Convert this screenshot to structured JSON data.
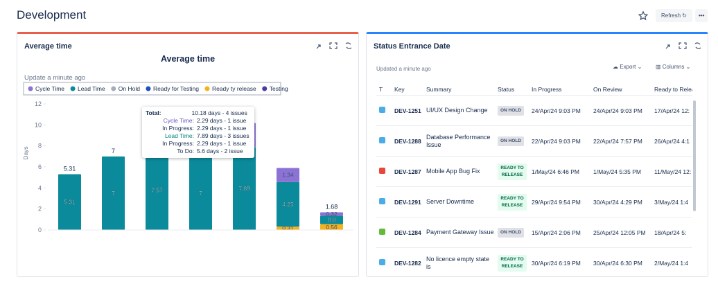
{
  "header": {
    "title": "Development",
    "refresh": "Refresh"
  },
  "left_panel": {
    "title": "Average time",
    "updated": "Update a minute ago"
  },
  "chart_data": {
    "type": "stacked-bar",
    "title": "Average time",
    "y_label": "Days",
    "categories": [
      null,
      null,
      null,
      null,
      null,
      null,
      null
    ],
    "series": [
      {
        "name": "Cycle Time",
        "color": "#8b73d6",
        "values": [
          null,
          null,
          null,
          null,
          2.29,
          1.34,
          0.32
        ]
      },
      {
        "name": "Lead Time",
        "color": "#0b8a9b",
        "values": [
          5.31,
          7,
          7.57,
          7,
          7.89,
          4.25,
          0.8
        ]
      },
      {
        "name": "On Hold",
        "color": "#a5adba",
        "values": [
          null,
          null,
          null,
          null,
          null,
          null,
          null
        ]
      },
      {
        "name": "Ready for Testing",
        "color": "#1d4fbf",
        "values": [
          null,
          null,
          null,
          null,
          null,
          null,
          null
        ]
      },
      {
        "name": "Ready ty release",
        "color": "#f5b21f",
        "values": [
          null,
          null,
          null,
          null,
          null,
          0.31,
          0.56
        ]
      },
      {
        "name": "Testing",
        "color": "#4a3aa4",
        "values": [
          null,
          null,
          null,
          null,
          null,
          null,
          null
        ]
      }
    ],
    "totals": [
      5.31,
      7,
      null,
      null,
      null,
      null,
      1.68
    ],
    "ylim": [
      0,
      12
    ],
    "yticks": [
      0,
      2,
      4,
      6,
      8,
      10,
      12
    ],
    "grid": false,
    "tooltip": [
      {
        "label": "Total:",
        "value": "10.18 days - 4 issues"
      },
      {
        "label": "Cycle Time:",
        "value": "2.29 days - 1 issue"
      },
      {
        "label": "In Progress:",
        "value": "2.29 days - 1 issue"
      },
      {
        "label": "Lead Time:",
        "value": "7.89 days - 3 issues"
      },
      {
        "label": "In Progress:",
        "value": "2.29 days - 1 issue"
      },
      {
        "label": "To Do:",
        "value": "5.6 days - 2 issue"
      }
    ]
  },
  "right_panel": {
    "title": "Status Entrance Date",
    "updated": "Updated a minute ago",
    "export": "Export",
    "columns": "Columns"
  },
  "table": {
    "headers": [
      "T",
      "Key",
      "Summary",
      "Status",
      "In Progress",
      "On Review",
      "Ready to Release"
    ],
    "rows": [
      [
        "DEV-1251",
        "UI/UX Design Change",
        "ON HOLD",
        "24/Apr/24 9:03 PM",
        "24/Apr/24 9:03 PM",
        "17/Apr/24 12:"
      ],
      [
        "DEV-1288",
        "Database Performance Issue",
        "ON HOLD",
        "22/Apr/24 9:03 PM",
        "22/Apr/24 7:57 PM",
        "26/Apr/24 4:1"
      ],
      [
        "DEV-1287",
        "Mobile App Bug Fix",
        "READY TO RELEASE",
        "1/May/24 6:46 PM",
        "1/May/24 5:35 PM",
        "11/May/24 12:"
      ],
      [
        "DEV-1291",
        "Server Downtime",
        "READY TO RELEASE",
        "29/Apr/24 9:54 PM",
        "30/Apr/24 4:29 PM",
        "3/May/24 1:4"
      ],
      [
        "DEV-1284",
        "Payment Gateway Issue",
        "ON HOLD",
        "15/Apr/24 2:06 PM",
        "25/Apr/24 12:05 PM",
        "18/Apr/24 5:"
      ],
      [
        "DEV-1282",
        "No licence empty state is",
        "READY TO RELEASE",
        "30/Apr/24 6:19 PM",
        "30/Apr/24 6:30 PM",
        "2/May/24 1:4"
      ]
    ]
  }
}
